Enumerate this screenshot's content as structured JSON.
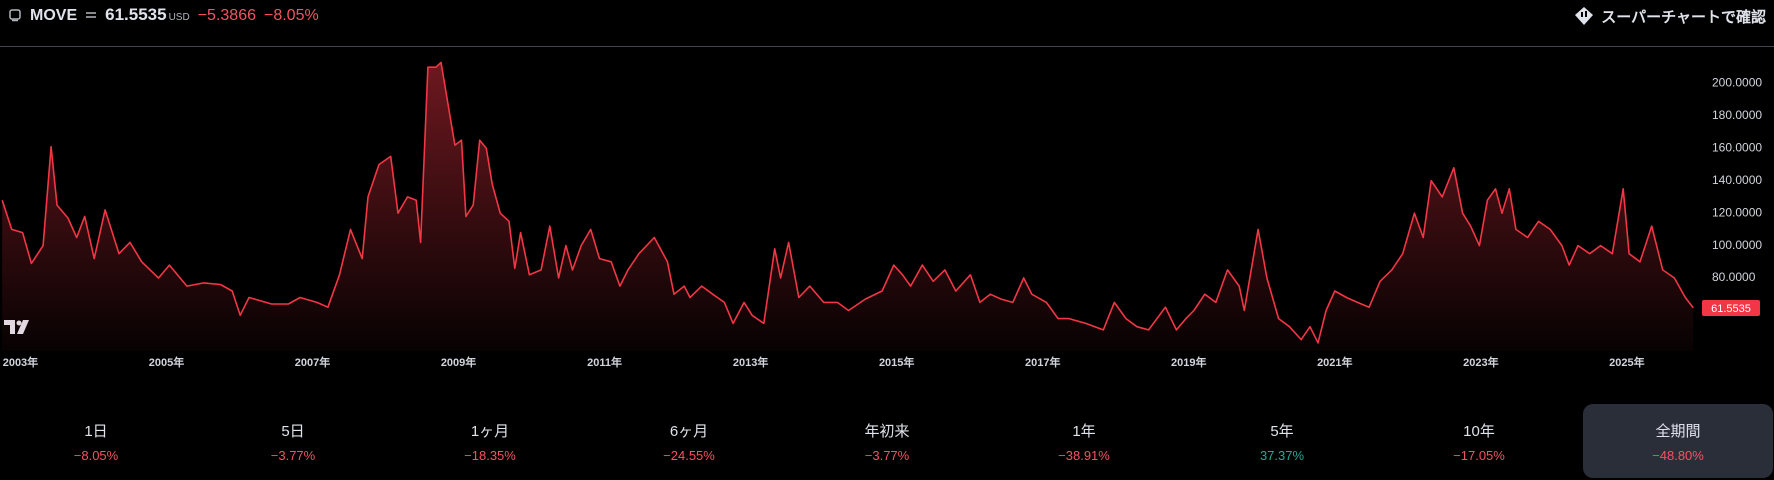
{
  "header": {
    "symbol": "MOVE",
    "price": "61.5535",
    "currency": "USD",
    "change": "−5.3866",
    "change_percent": "−8.05%",
    "button": "スーパーチャートで確認"
  },
  "chart_data": {
    "type": "line",
    "color": "#f23645",
    "x": [
      2002.75,
      2002.88,
      2003.03,
      2003.15,
      2003.31,
      2003.42,
      2003.5,
      2003.65,
      2003.77,
      2003.88,
      2004.01,
      2004.16,
      2004.35,
      2004.5,
      2004.66,
      2004.89,
      2005.04,
      2005.28,
      2005.51,
      2005.74,
      2005.9,
      2006.01,
      2006.13,
      2006.44,
      2006.67,
      2006.83,
      2007.06,
      2007.21,
      2007.37,
      2007.52,
      2007.68,
      2007.76,
      2007.91,
      2008.07,
      2008.17,
      2008.3,
      2008.42,
      2008.48,
      2008.58,
      2008.69,
      2008.76,
      2008.95,
      2009.04,
      2009.1,
      2009.2,
      2009.29,
      2009.38,
      2009.46,
      2009.57,
      2009.69,
      2009.77,
      2009.85,
      2009.97,
      2010.13,
      2010.25,
      2010.37,
      2010.47,
      2010.56,
      2010.68,
      2010.81,
      2010.93,
      2011.09,
      2011.21,
      2011.32,
      2011.47,
      2011.68,
      2011.86,
      2011.95,
      2012.09,
      2012.17,
      2012.33,
      2012.48,
      2012.64,
      2012.76,
      2012.91,
      2013.02,
      2013.18,
      2013.33,
      2013.41,
      2013.52,
      2013.66,
      2013.81,
      2014.0,
      2014.19,
      2014.34,
      2014.57,
      2014.8,
      2014.96,
      2015.08,
      2015.19,
      2015.35,
      2015.5,
      2015.66,
      2015.81,
      2016.01,
      2016.14,
      2016.28,
      2016.43,
      2016.59,
      2016.74,
      2016.85,
      2017.05,
      2017.21,
      2017.36,
      2017.59,
      2017.83,
      2017.98,
      2018.14,
      2018.29,
      2018.45,
      2018.68,
      2018.83,
      2018.96,
      2019.07,
      2019.22,
      2019.37,
      2019.53,
      2019.69,
      2019.76,
      2019.95,
      2020.07,
      2020.23,
      2020.38,
      2020.54,
      2020.66,
      2020.77,
      2020.88,
      2021.0,
      2021.16,
      2021.31,
      2021.47,
      2021.62,
      2021.78,
      2021.93,
      2022.09,
      2022.21,
      2022.32,
      2022.47,
      2022.63,
      2022.75,
      2022.86,
      2022.98,
      2023.09,
      2023.2,
      2023.29,
      2023.39,
      2023.48,
      2023.64,
      2023.79,
      2023.95,
      2024.11,
      2024.21,
      2024.33,
      2024.49,
      2024.64,
      2024.8,
      2024.95,
      2025.03,
      2025.18,
      2025.34,
      2025.49,
      2025.65,
      2025.8,
      2025.91
    ],
    "values": [
      128,
      110,
      108,
      89,
      100,
      161,
      125,
      117,
      105,
      118,
      92,
      122,
      95,
      102,
      90,
      80,
      88,
      75,
      77,
      76,
      72,
      57,
      68,
      64,
      64,
      68,
      65,
      62,
      82,
      110,
      92,
      130,
      150,
      155,
      120,
      130,
      128,
      102,
      210,
      210,
      213,
      162,
      165,
      118,
      125,
      165,
      160,
      138,
      120,
      115,
      86,
      108,
      82,
      85,
      112,
      80,
      100,
      85,
      100,
      110,
      92,
      90,
      75,
      85,
      95,
      105,
      90,
      70,
      75,
      68,
      75,
      70,
      65,
      52,
      65,
      57,
      52,
      98,
      80,
      102,
      68,
      75,
      65,
      65,
      60,
      67,
      72,
      88,
      82,
      75,
      88,
      78,
      85,
      72,
      82,
      65,
      70,
      67,
      65,
      80,
      70,
      65,
      55,
      55,
      52,
      48,
      65,
      55,
      50,
      48,
      62,
      48,
      55,
      60,
      70,
      65,
      85,
      75,
      60,
      110,
      80,
      55,
      50,
      42,
      50,
      40,
      60,
      72,
      68,
      65,
      62,
      78,
      85,
      95,
      120,
      105,
      140,
      130,
      148,
      120,
      112,
      100,
      128,
      135,
      120,
      135,
      110,
      105,
      115,
      110,
      100,
      88,
      100,
      95,
      100,
      95,
      135,
      95,
      90,
      112,
      85,
      80,
      68,
      61.5535
    ],
    "xlim": [
      2002.72,
      2025.96
    ],
    "ylim": [
      35,
      220
    ],
    "xticks": [
      {
        "value": 2003,
        "label": "2003年"
      },
      {
        "value": 2005,
        "label": "2005年"
      },
      {
        "value": 2007,
        "label": "2007年"
      },
      {
        "value": 2009,
        "label": "2009年"
      },
      {
        "value": 2011,
        "label": "2011年"
      },
      {
        "value": 2013,
        "label": "2013年"
      },
      {
        "value": 2015,
        "label": "2015年"
      },
      {
        "value": 2017,
        "label": "2017年"
      },
      {
        "value": 2019,
        "label": "2019年"
      },
      {
        "value": 2021,
        "label": "2021年"
      },
      {
        "value": 2023,
        "label": "2023年"
      },
      {
        "value": 2025,
        "label": "2025年"
      }
    ],
    "yticks": [
      {
        "value": 80,
        "label": "80.0000"
      },
      {
        "value": 100,
        "label": "100.0000"
      },
      {
        "value": 120,
        "label": "120.0000"
      },
      {
        "value": 140,
        "label": "140.0000"
      },
      {
        "value": 160,
        "label": "160.0000"
      },
      {
        "value": 180,
        "label": "180.0000"
      },
      {
        "value": 200,
        "label": "200.0000"
      }
    ]
  },
  "periods": [
    {
      "label": "1日",
      "change": "−8.05%"
    },
    {
      "label": "5日",
      "change": "−3.77%"
    },
    {
      "label": "1ヶ月",
      "change": "−18.35%"
    },
    {
      "label": "6ヶ月",
      "change": "−24.55%"
    },
    {
      "label": "年初来",
      "change": "−3.77%"
    },
    {
      "label": "1年",
      "change": "−38.91%"
    },
    {
      "label": "5年",
      "change": "37.37%"
    },
    {
      "label": "10年",
      "change": "−17.05%"
    },
    {
      "label": "全期間",
      "change": "−48.80%"
    }
  ],
  "selected_period": 8
}
